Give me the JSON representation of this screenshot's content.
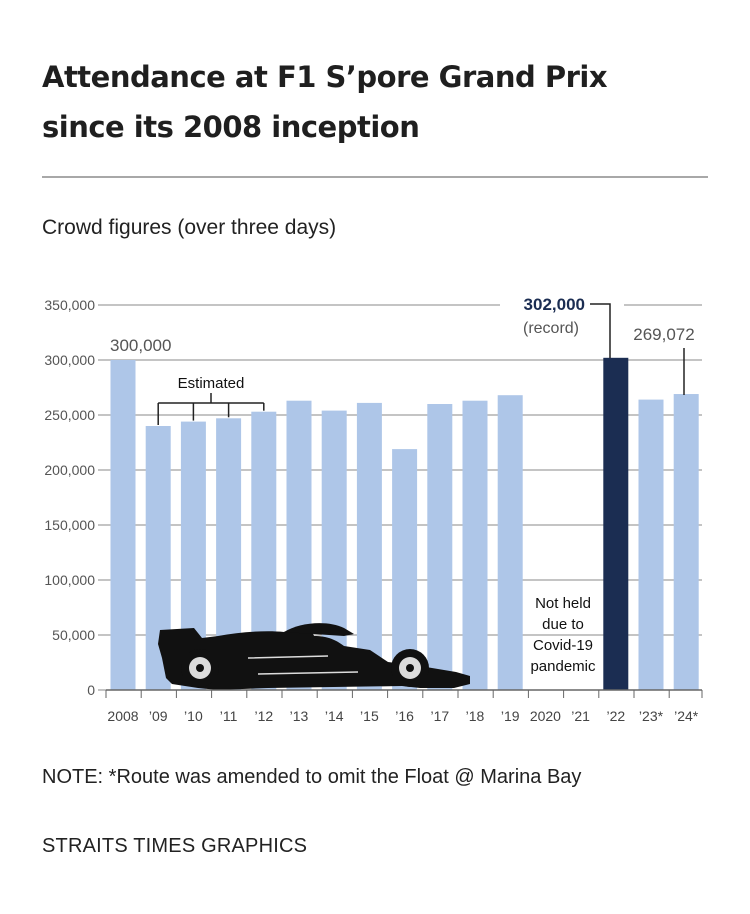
{
  "header": {
    "title_line1": "Attendance at F1 S’pore Grand Prix",
    "title_line2": "since its 2008 inception",
    "subtitle": "Crowd figures (over three days)"
  },
  "footer": {
    "note": "NOTE: *Route was amended to omit the Float @ Marina Bay",
    "credit": "STRAITS TIMES GRAPHICS"
  },
  "colors": {
    "bar": "#aec6e8",
    "highlight": "#1b2d52",
    "grid": "#8a8a8a"
  },
  "chart_data": {
    "type": "bar",
    "categories": [
      "2008",
      "’09",
      "’10",
      "’11",
      "’12",
      "’13",
      "’14",
      "’15",
      "’16",
      "’17",
      "’18",
      "’19",
      "2020",
      "’21",
      "’22",
      "’23*",
      "’24*"
    ],
    "values": [
      300000,
      240000,
      244000,
      247000,
      253000,
      263000,
      254000,
      261000,
      219000,
      260000,
      263000,
      268000,
      null,
      null,
      302000,
      264000,
      269072
    ],
    "highlight_index": 14,
    "ylim": [
      0,
      350000
    ],
    "yticks": [
      0,
      50000,
      100000,
      150000,
      200000,
      250000,
      300000,
      350000
    ],
    "ytick_labels": [
      "0",
      "50,000",
      "100,000",
      "150,000",
      "200,000",
      "250,000",
      "300,000",
      "350,000"
    ],
    "grid": true,
    "annotations": {
      "first": {
        "index": 0,
        "text": "300,000"
      },
      "record": {
        "index": 14,
        "text": "302,000",
        "subtext": "(record)"
      },
      "last": {
        "index": 16,
        "text": "269,072"
      },
      "estimated": {
        "text": "Estimated",
        "indices": [
          1,
          2,
          3,
          4
        ]
      },
      "not_held": {
        "indices": [
          12,
          13
        ],
        "lines": [
          "Not held",
          "due to",
          "Covid-19",
          "pandemic"
        ]
      }
    }
  }
}
